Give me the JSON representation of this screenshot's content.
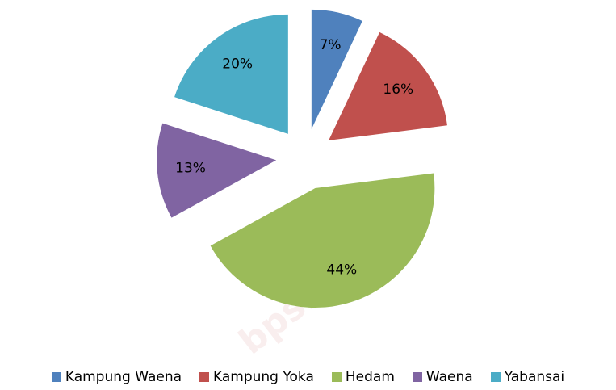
{
  "chart_data": {
    "type": "pie",
    "categories": [
      "Kampung Waena",
      "Kampung Yoka",
      "Hedam",
      "Waena",
      "Yabansai"
    ],
    "values": [
      7,
      16,
      44,
      13,
      20
    ],
    "value_labels": [
      "7%",
      "16%",
      "44%",
      "13%",
      "20%"
    ],
    "colors": [
      "#4f81bd",
      "#c0504d",
      "#9bbb59",
      "#8064a2",
      "#4bacc6"
    ],
    "legend": "bottom",
    "watermark": "bps.go.id"
  }
}
